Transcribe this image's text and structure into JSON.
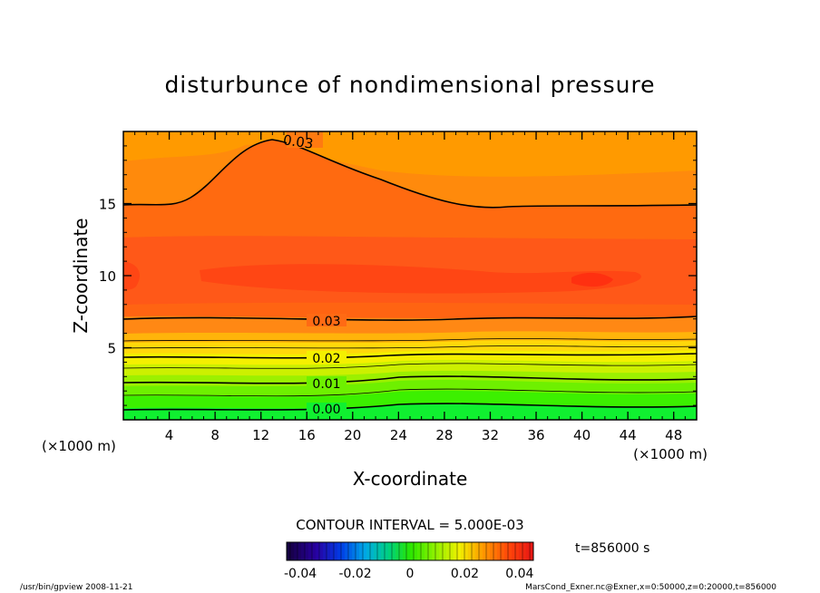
{
  "chart_data": {
    "type": "heatmap",
    "title": "disturbunce of nondimensional pressure",
    "xlabel": "X-coordinate",
    "ylabel": "Z-coordinate",
    "x_unit": "(×1000 m)",
    "y_unit": "(×1000 m)",
    "xlim": [
      0,
      50
    ],
    "ylim": [
      0,
      20
    ],
    "x_ticks": [
      "4",
      "8",
      "12",
      "16",
      "20",
      "24",
      "28",
      "32",
      "36",
      "40",
      "44",
      "48"
    ],
    "y_ticks": [
      "5",
      "10",
      "15"
    ],
    "contour_interval_label": "CONTOUR INTERVAL = 5.000E-03",
    "contour_labels": [
      "0.03",
      "0.03",
      "0.02",
      "0.01",
      "0.00"
    ],
    "time_label": "t=856000 s",
    "colorbar": {
      "min": -0.045,
      "max": 0.045,
      "tick_labels": [
        "-0.04",
        "-0.02",
        "0",
        "0.02",
        "0.04"
      ]
    },
    "footer_left": "/usr/bin/gpview  2008-11-21",
    "footer_right": "MarsCond_Exner.nc@Exner,x=0:50000,z=0:20000,t=856000"
  }
}
